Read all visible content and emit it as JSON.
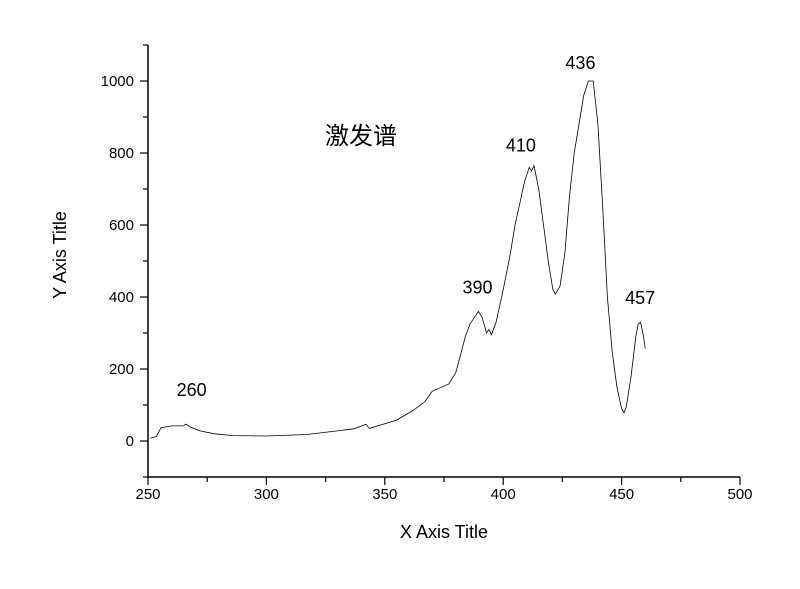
{
  "chart_data": {
    "type": "line",
    "title": "激发谱",
    "xlabel": "X Axis Title",
    "ylabel": "Y Axis Title",
    "xlim": [
      250,
      500
    ],
    "ylim": [
      -100,
      1100
    ],
    "xticks": [
      250,
      300,
      350,
      400,
      450,
      500
    ],
    "yticks": [
      0,
      200,
      400,
      600,
      800,
      1000
    ],
    "grid": false,
    "line_color": "#000000",
    "series": [
      {
        "x": [
          251,
          253.5,
          255.5,
          260,
          265,
          266,
          268,
          272,
          278,
          286,
          300,
          317,
          330,
          337,
          342,
          343.5,
          350,
          355,
          362,
          367,
          370,
          377,
          380,
          382,
          384,
          386,
          388,
          389.5,
          391,
          393,
          394,
          395,
          397,
          400,
          403,
          405,
          407,
          409,
          411,
          412,
          413,
          415,
          417,
          419,
          421,
          422,
          424,
          426,
          428,
          430,
          432,
          434,
          436,
          438,
          440,
          442,
          444,
          446,
          448,
          450,
          451,
          452,
          454,
          456,
          457,
          458,
          459,
          460
        ],
        "y": [
          8,
          12,
          37,
          42,
          42,
          47,
          38,
          28,
          20,
          15,
          14,
          18,
          28,
          34,
          46,
          35,
          48,
          58,
          85,
          110,
          138,
          158,
          190,
          240,
          290,
          325,
          345,
          360,
          345,
          300,
          310,
          295,
          330,
          420,
          520,
          600,
          660,
          720,
          760,
          750,
          765,
          700,
          600,
          500,
          420,
          408,
          430,
          520,
          680,
          800,
          880,
          960,
          1000,
          1000,
          880,
          650,
          400,
          250,
          150,
          90,
          78,
          95,
          180,
          290,
          325,
          330,
          300,
          257
        ]
      }
    ],
    "annotations": [
      {
        "text": "260",
        "x": 260
      },
      {
        "text": "390",
        "x": 390
      },
      {
        "text": "410",
        "x": 410
      },
      {
        "text": "436",
        "x": 436
      },
      {
        "text": "457",
        "x": 457
      }
    ]
  }
}
